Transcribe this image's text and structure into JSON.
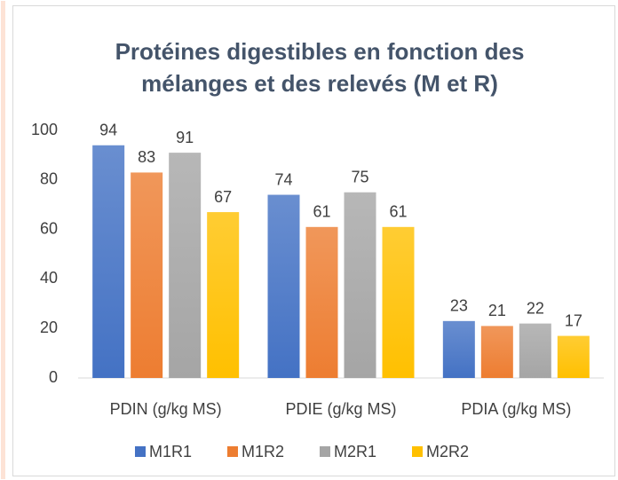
{
  "chart_data": {
    "type": "bar",
    "title": "Protéines digestibles en fonction des mélanges et des relevés (M et R)",
    "categories": [
      "PDIN (g/kg MS)",
      "PDIE (g/kg MS)",
      "PDIA (g/kg MS)"
    ],
    "series": [
      {
        "name": "M1R1",
        "color": "#4472c4",
        "values": [
          94,
          74,
          23
        ]
      },
      {
        "name": "M1R2",
        "color": "#ed7d31",
        "values": [
          83,
          61,
          21
        ]
      },
      {
        "name": "M2R1",
        "color": "#a5a5a5",
        "values": [
          91,
          75,
          22
        ]
      },
      {
        "name": "M2R2",
        "color": "#ffc000",
        "values": [
          67,
          61,
          17
        ]
      }
    ],
    "ylim": [
      0,
      100
    ],
    "yticks": [
      0,
      20,
      40,
      60,
      80,
      100
    ],
    "grid": false,
    "legend": "bottom"
  }
}
